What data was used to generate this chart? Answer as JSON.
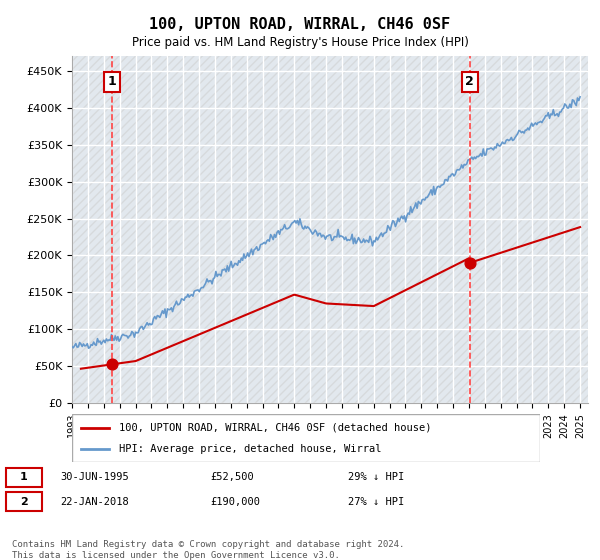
{
  "title": "100, UPTON ROAD, WIRRAL, CH46 0SF",
  "subtitle": "Price paid vs. HM Land Registry's House Price Index (HPI)",
  "ylabel_ticks": [
    "£0",
    "£50K",
    "£100K",
    "£150K",
    "£200K",
    "£250K",
    "£300K",
    "£350K",
    "£400K",
    "£450K"
  ],
  "ytick_values": [
    0,
    50000,
    100000,
    150000,
    200000,
    250000,
    300000,
    350000,
    400000,
    450000
  ],
  "ylim": [
    0,
    470000
  ],
  "xlim_start": 1993.0,
  "xlim_end": 2025.5,
  "hpi_color": "#6699cc",
  "price_color": "#cc0000",
  "vline_color": "#ff4444",
  "background_color": "#f0f4ff",
  "grid_color": "#cccccc",
  "sale1_x": 1995.5,
  "sale1_y": 52500,
  "sale1_label": "1",
  "sale2_x": 2018.05,
  "sale2_y": 190000,
  "sale2_label": "2",
  "legend_label_price": "100, UPTON ROAD, WIRRAL, CH46 0SF (detached house)",
  "legend_label_hpi": "HPI: Average price, detached house, Wirral",
  "table_row1": "1    30-JUN-1995         £52,500        29% ↓ HPI",
  "table_row2": "2    22-JAN-2018         £190,000      27% ↓ HPI",
  "footer": "Contains HM Land Registry data © Crown copyright and database right 2024.\nThis data is licensed under the Open Government Licence v3.0.",
  "hatch_pattern": "////",
  "hatch_color": "#bbbbbb"
}
